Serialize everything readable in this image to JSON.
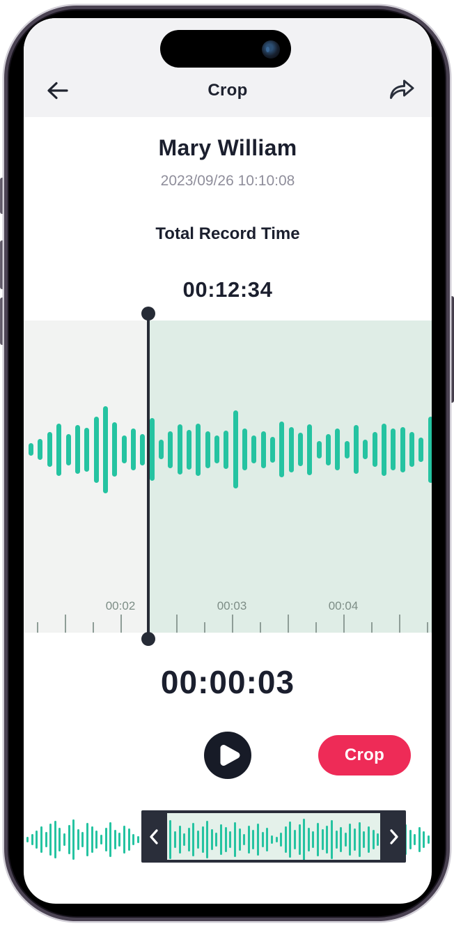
{
  "nav": {
    "title": "Crop",
    "back_icon": "arrow-left-icon",
    "share_icon": "share-forward-icon"
  },
  "recording": {
    "name": "Mary William",
    "datetime": "2023/09/26 10:10:08",
    "total_time_label": "Total Record Time",
    "total_time": "00:12:34"
  },
  "editor": {
    "selected_time": "00:00:03",
    "ruler_labels": [
      "00:02",
      "00:03",
      "00:04"
    ],
    "crop_button_label": "Crop",
    "play_icon": "play-icon",
    "left_handle_icon": "chevron-left-icon",
    "right_handle_icon": "chevron-right-icon"
  },
  "colors": {
    "teal": "#25C3A1",
    "selection_green": "#DFEDE6",
    "panel_gray": "#F2F3F2",
    "crop_pink": "#EE2B57",
    "dark_text": "#1B1F2E",
    "date_gray": "#8F8E9B",
    "tick_gray": "#8E9D97"
  },
  "waveform": {
    "main_heights": [
      18,
      30,
      50,
      75,
      45,
      70,
      63,
      95,
      125,
      78,
      40,
      60,
      45,
      90,
      28,
      53,
      72,
      57,
      75,
      53,
      40,
      55,
      112,
      60,
      40,
      53,
      37,
      80,
      65,
      48,
      73,
      25,
      45,
      60,
      25,
      70,
      28,
      50,
      75,
      60,
      65,
      50,
      35,
      95
    ],
    "mini_heights": [
      8,
      16,
      26,
      38,
      22,
      46,
      54,
      34,
      18,
      42,
      58,
      30,
      22,
      48,
      38,
      26,
      14,
      34,
      50,
      28,
      20,
      40,
      32,
      16,
      10,
      24,
      36,
      20,
      30,
      44,
      28,
      56,
      24,
      40,
      18,
      34,
      48,
      26,
      38,
      54,
      30,
      20,
      44,
      36,
      24,
      50,
      32,
      16,
      40,
      28,
      46,
      22,
      34,
      12,
      8,
      20,
      38,
      52,
      28,
      44,
      60,
      34,
      24,
      48,
      30,
      40,
      56,
      26,
      36,
      20,
      46,
      32,
      50,
      24,
      38,
      28,
      18,
      30,
      42,
      24,
      34,
      20,
      44,
      28,
      16,
      36,
      24,
      12
    ]
  }
}
